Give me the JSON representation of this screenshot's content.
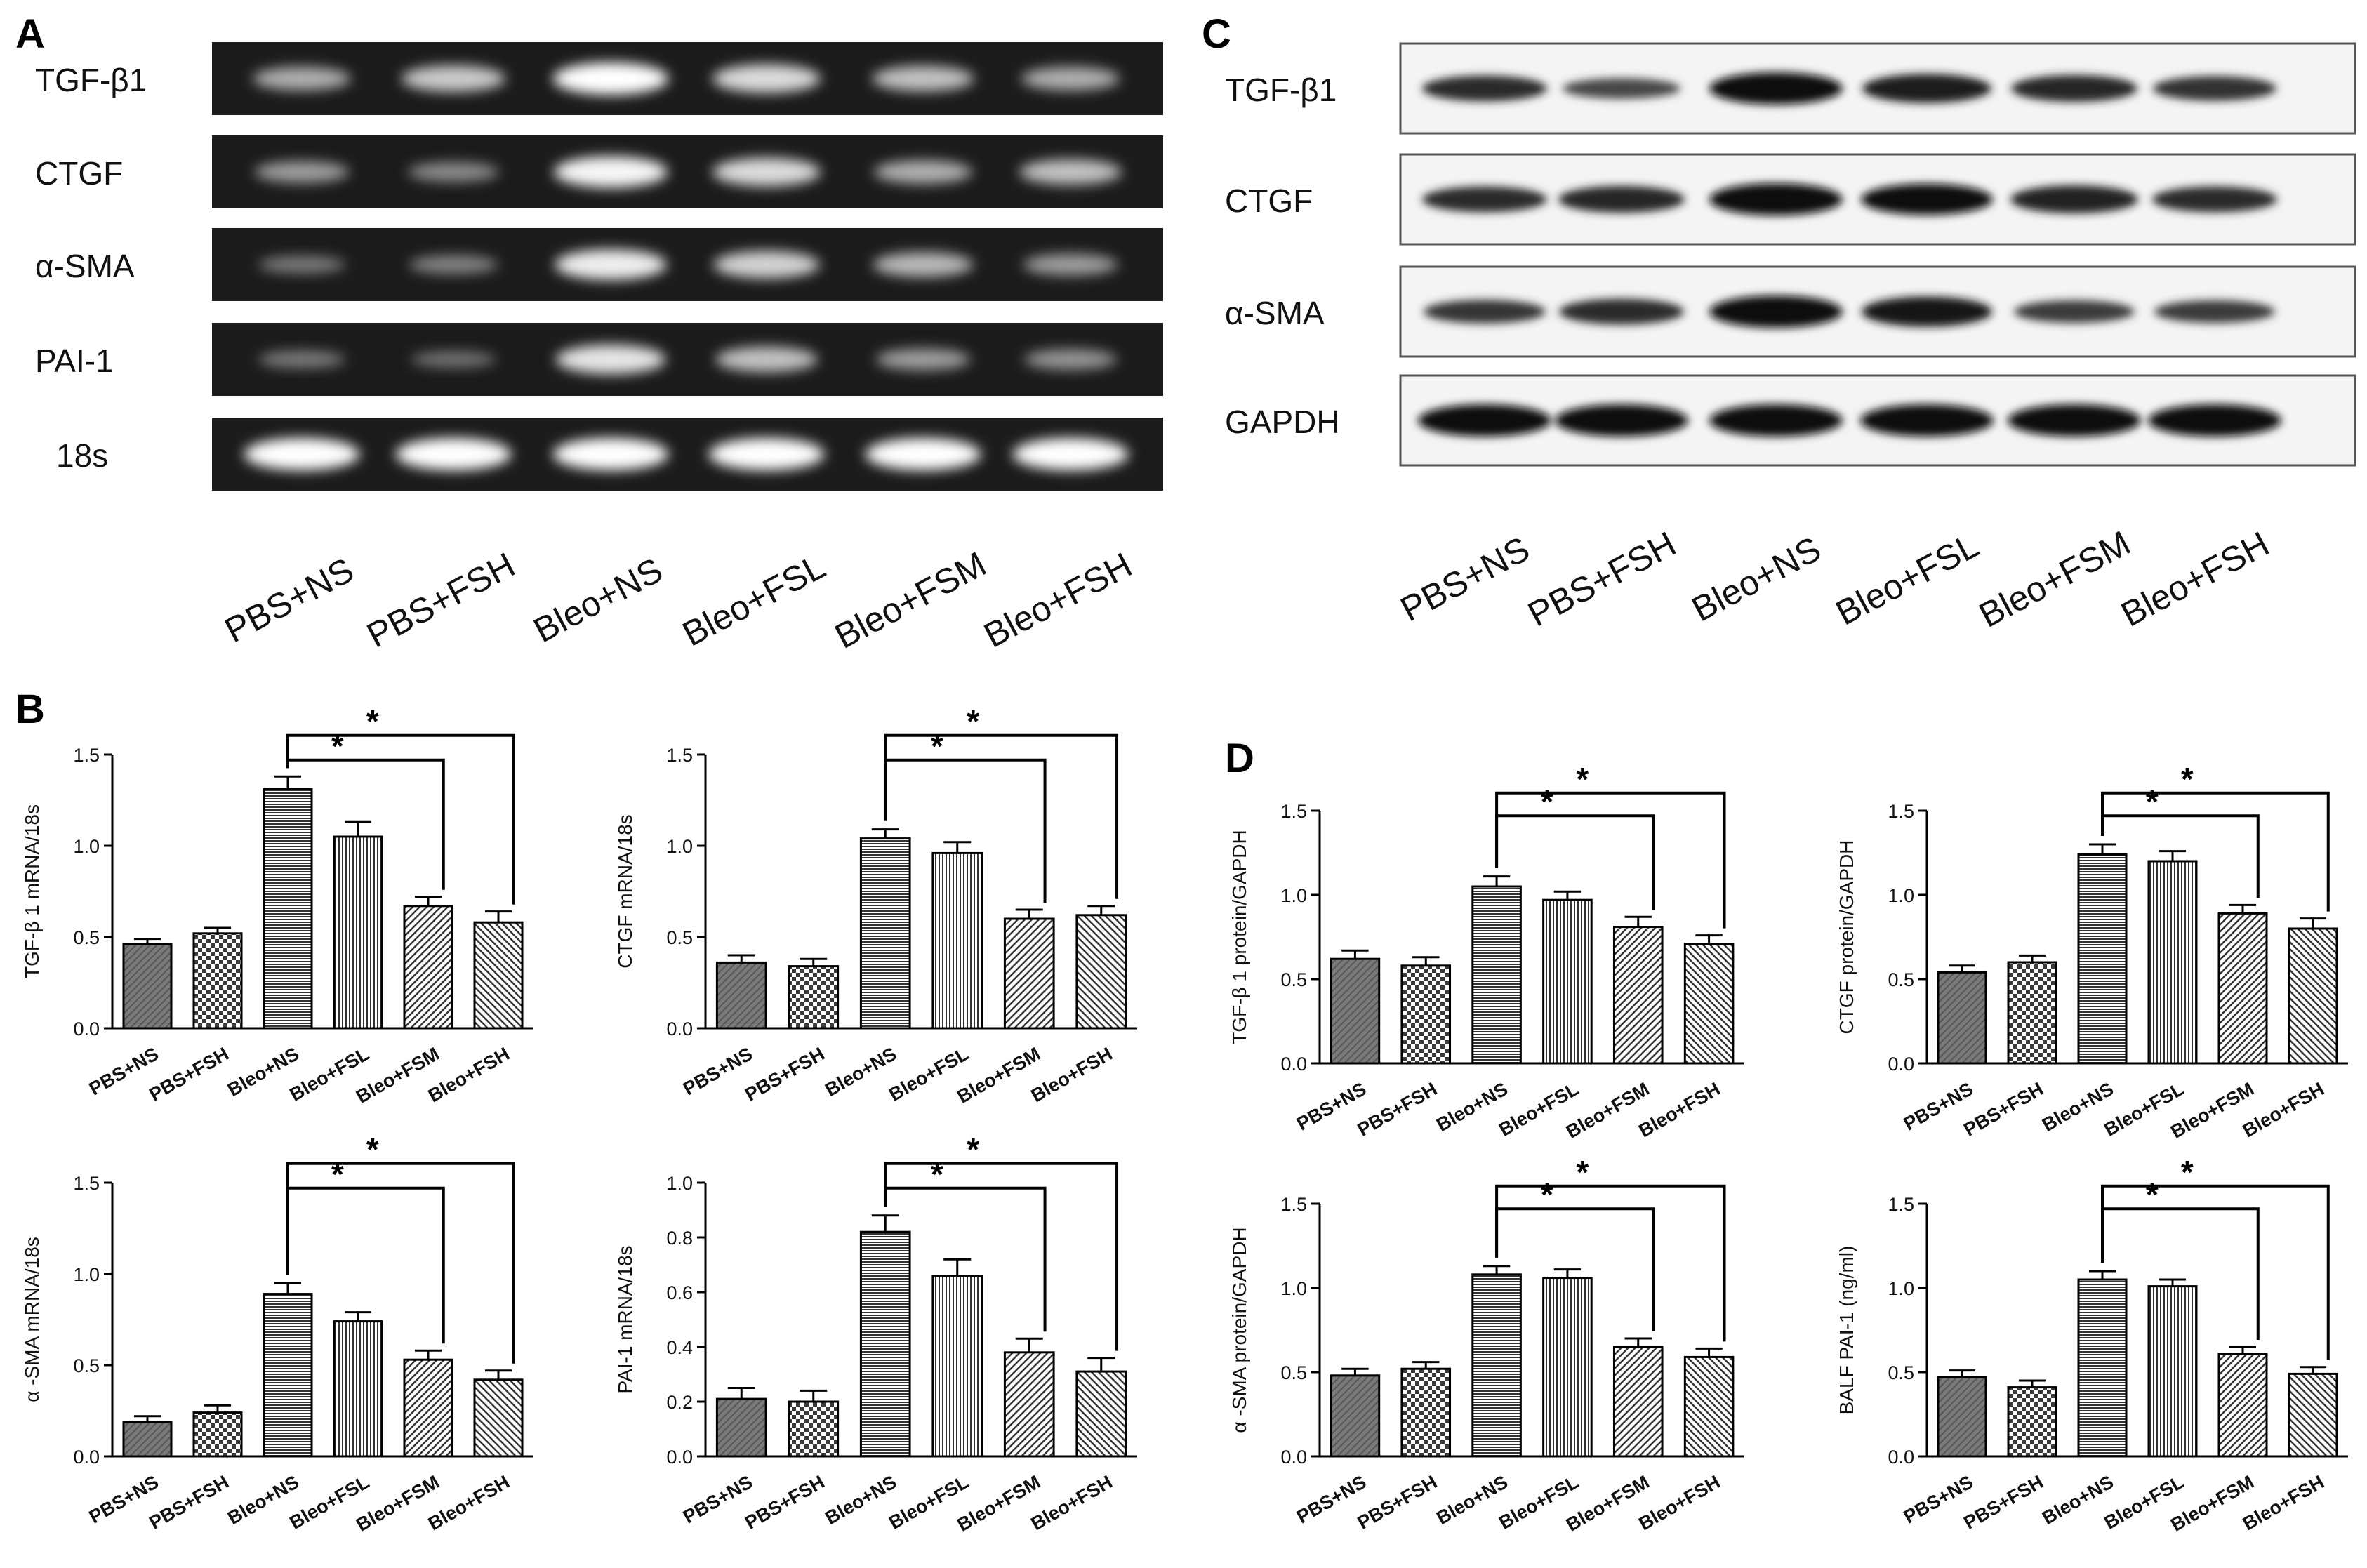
{
  "panels": {
    "A": {
      "letter": "A",
      "rows": [
        "TGF-β1",
        "CTGF",
        "α-SMA",
        "PAI-1",
        "18s"
      ],
      "groups": [
        "PBS+NS",
        "PBS+FSH",
        "Bleo+NS",
        "Bleo+FSL",
        "Bleo+FSM",
        "Bleo+FSH"
      ],
      "band_intensity": [
        [
          0.55,
          0.7,
          1.0,
          0.8,
          0.65,
          0.55
        ],
        [
          0.45,
          0.35,
          0.95,
          0.8,
          0.55,
          0.65
        ],
        [
          0.25,
          0.3,
          0.9,
          0.75,
          0.6,
          0.45
        ],
        [
          0.25,
          0.2,
          0.85,
          0.65,
          0.45,
          0.4
        ],
        [
          1.0,
          1.0,
          1.0,
          1.0,
          1.0,
          1.0
        ]
      ]
    },
    "C": {
      "letter": "C",
      "rows": [
        "TGF-β1",
        "CTGF",
        "α-SMA",
        "GAPDH"
      ],
      "groups": [
        "PBS+NS",
        "PBS+FSH",
        "Bleo+NS",
        "Bleo+FSL",
        "Bleo+FSM",
        "Bleo+FSH"
      ],
      "band_intensity": [
        [
          0.7,
          0.45,
          1.0,
          0.85,
          0.75,
          0.65
        ],
        [
          0.7,
          0.75,
          1.0,
          0.95,
          0.8,
          0.7
        ],
        [
          0.6,
          0.7,
          1.0,
          0.9,
          0.55,
          0.55
        ],
        [
          1.0,
          1.0,
          1.0,
          1.0,
          1.0,
          1.0
        ]
      ]
    },
    "B": {
      "letter": "B"
    },
    "D": {
      "letter": "D"
    }
  },
  "chart_data": [
    {
      "panel": "B",
      "type": "bar",
      "ylabel": "TGF-β 1 mRNA/18s",
      "categories": [
        "PBS+NS",
        "PBS+FSH",
        "Bleo+NS",
        "Bleo+FSL",
        "Bleo+FSM",
        "Bleo+FSH"
      ],
      "values": [
        0.46,
        0.52,
        1.31,
        1.05,
        0.67,
        0.58
      ],
      "errors": [
        0.03,
        0.03,
        0.07,
        0.08,
        0.05,
        0.06
      ],
      "ylim": [
        0,
        1.5
      ],
      "yticks": [
        "0.0",
        "0.5",
        "1.0",
        "1.5"
      ],
      "significance": [
        {
          "from": 2,
          "to": 4,
          "label": "*"
        },
        {
          "from": 2,
          "to": 5,
          "label": "*"
        }
      ]
    },
    {
      "panel": "B",
      "type": "bar",
      "ylabel": "CTGF mRNA/18s",
      "categories": [
        "PBS+NS",
        "PBS+FSH",
        "Bleo+NS",
        "Bleo+FSL",
        "Bleo+FSM",
        "Bleo+FSH"
      ],
      "values": [
        0.36,
        0.34,
        1.04,
        0.96,
        0.6,
        0.62
      ],
      "errors": [
        0.04,
        0.04,
        0.05,
        0.06,
        0.05,
        0.05
      ],
      "ylim": [
        0,
        1.5
      ],
      "yticks": [
        "0.0",
        "0.5",
        "1.0",
        "1.5"
      ],
      "significance": [
        {
          "from": 2,
          "to": 4,
          "label": "*"
        },
        {
          "from": 2,
          "to": 5,
          "label": "*"
        }
      ]
    },
    {
      "panel": "B",
      "type": "bar",
      "ylabel": "α -SMA mRNA/18s",
      "categories": [
        "PBS+NS",
        "PBS+FSH",
        "Bleo+NS",
        "Bleo+FSL",
        "Bleo+FSM",
        "Bleo+FSH"
      ],
      "values": [
        0.19,
        0.24,
        0.89,
        0.74,
        0.53,
        0.42
      ],
      "errors": [
        0.03,
        0.04,
        0.06,
        0.05,
        0.05,
        0.05
      ],
      "ylim": [
        0,
        1.5
      ],
      "yticks": [
        "0.0",
        "0.5",
        "1.0",
        "1.5"
      ],
      "significance": [
        {
          "from": 2,
          "to": 4,
          "label": "*"
        },
        {
          "from": 2,
          "to": 5,
          "label": "*"
        }
      ]
    },
    {
      "panel": "B",
      "type": "bar",
      "ylabel": "PAI-1 mRNA/18s",
      "categories": [
        "PBS+NS",
        "PBS+FSH",
        "Bleo+NS",
        "Bleo+FSL",
        "Bleo+FSM",
        "Bleo+FSH"
      ],
      "values": [
        0.21,
        0.2,
        0.82,
        0.66,
        0.38,
        0.31
      ],
      "errors": [
        0.04,
        0.04,
        0.06,
        0.06,
        0.05,
        0.05
      ],
      "ylim": [
        0,
        1.0
      ],
      "yticks": [
        "0.0",
        "0.2",
        "0.4",
        "0.6",
        "0.8",
        "1.0"
      ],
      "significance": [
        {
          "from": 2,
          "to": 4,
          "label": "*"
        },
        {
          "from": 2,
          "to": 5,
          "label": "*"
        }
      ]
    },
    {
      "panel": "D",
      "type": "bar",
      "ylabel": "TGF-β 1 protein/GAPDH",
      "categories": [
        "PBS+NS",
        "PBS+FSH",
        "Bleo+NS",
        "Bleo+FSL",
        "Bleo+FSM",
        "Bleo+FSH"
      ],
      "values": [
        0.62,
        0.58,
        1.05,
        0.97,
        0.81,
        0.71
      ],
      "errors": [
        0.05,
        0.05,
        0.06,
        0.05,
        0.06,
        0.05
      ],
      "ylim": [
        0,
        1.5
      ],
      "yticks": [
        "0.0",
        "0.5",
        "1.0",
        "1.5"
      ],
      "significance": [
        {
          "from": 2,
          "to": 4,
          "label": "*"
        },
        {
          "from": 2,
          "to": 5,
          "label": "*"
        }
      ]
    },
    {
      "panel": "D",
      "type": "bar",
      "ylabel": "CTGF protein/GAPDH",
      "categories": [
        "PBS+NS",
        "PBS+FSH",
        "Bleo+NS",
        "Bleo+FSL",
        "Bleo+FSM",
        "Bleo+FSH"
      ],
      "values": [
        0.54,
        0.6,
        1.24,
        1.2,
        0.89,
        0.8
      ],
      "errors": [
        0.04,
        0.04,
        0.06,
        0.06,
        0.05,
        0.06
      ],
      "ylim": [
        0,
        1.5
      ],
      "yticks": [
        "0.0",
        "0.5",
        "1.0",
        "1.5"
      ],
      "significance": [
        {
          "from": 2,
          "to": 4,
          "label": "*"
        },
        {
          "from": 2,
          "to": 5,
          "label": "*"
        }
      ]
    },
    {
      "panel": "D",
      "type": "bar",
      "ylabel": "α -SMA protein/GAPDH",
      "categories": [
        "PBS+NS",
        "PBS+FSH",
        "Bleo+NS",
        "Bleo+FSL",
        "Bleo+FSM",
        "Bleo+FSH"
      ],
      "values": [
        0.48,
        0.52,
        1.08,
        1.06,
        0.65,
        0.59
      ],
      "errors": [
        0.04,
        0.04,
        0.05,
        0.05,
        0.05,
        0.05
      ],
      "ylim": [
        0,
        1.5
      ],
      "yticks": [
        "0.0",
        "0.5",
        "1.0",
        "1.5"
      ],
      "significance": [
        {
          "from": 2,
          "to": 4,
          "label": "*"
        },
        {
          "from": 2,
          "to": 5,
          "label": "*"
        }
      ]
    },
    {
      "panel": "D",
      "type": "bar",
      "ylabel": "BALF PAI-1 (ng/ml)",
      "categories": [
        "PBS+NS",
        "PBS+FSH",
        "Bleo+NS",
        "Bleo+FSL",
        "Bleo+FSM",
        "Bleo+FSH"
      ],
      "values": [
        0.47,
        0.41,
        1.05,
        1.01,
        0.61,
        0.49
      ],
      "errors": [
        0.04,
        0.04,
        0.05,
        0.04,
        0.04,
        0.04
      ],
      "ylim": [
        0,
        1.5
      ],
      "yticks": [
        "0.0",
        "0.5",
        "1.0",
        "1.5"
      ],
      "significance": [
        {
          "from": 2,
          "to": 4,
          "label": "*"
        },
        {
          "from": 2,
          "to": 5,
          "label": "*"
        }
      ]
    }
  ]
}
